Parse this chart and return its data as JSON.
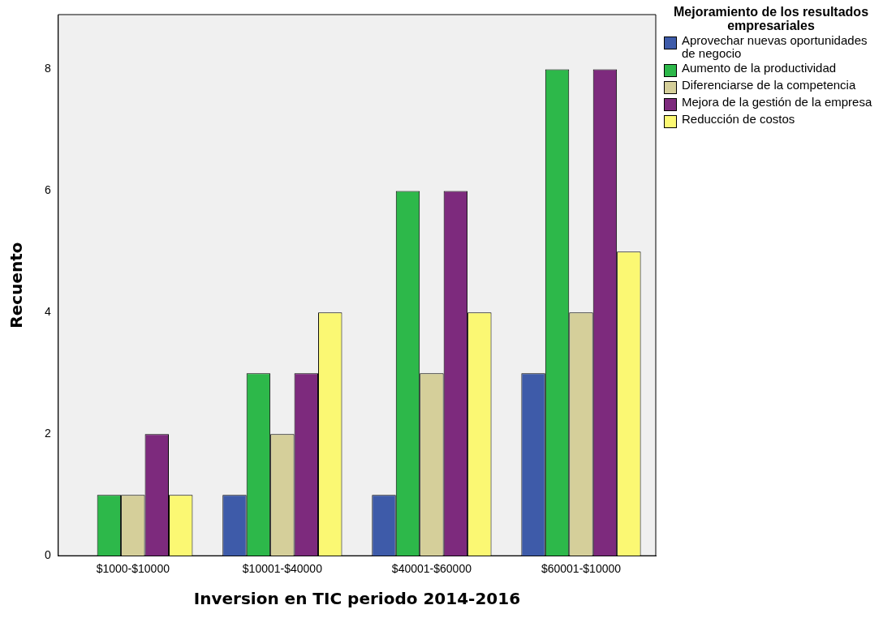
{
  "chart_data": {
    "type": "bar",
    "xlabel": "Inversion en TIC periodo 2014-2016",
    "ylabel": "Recuento",
    "legend_title": "Mejoramiento de los resultados empresariales",
    "categories": [
      "$1000-$10000",
      "$10001-$40000",
      "$40001-$60000",
      "$60001-$10000"
    ],
    "series": [
      {
        "name": "Aprovechar nuevas oportunidades de negocio",
        "color": "#3e5ba9",
        "values": [
          null,
          1,
          1,
          3
        ]
      },
      {
        "name": "Aumento de la productividad",
        "color": "#2db84a",
        "values": [
          1,
          3,
          6,
          8
        ]
      },
      {
        "name": "Diferenciarse de la competencia",
        "color": "#d5cf9a",
        "values": [
          1,
          2,
          3,
          4
        ]
      },
      {
        "name": "Mejora de la gestión de la empresa",
        "color": "#7d2a7d",
        "values": [
          2,
          3,
          6,
          8
        ]
      },
      {
        "name": "Reducción de costos",
        "color": "#fbf873",
        "values": [
          1,
          4,
          4,
          5
        ]
      }
    ],
    "ylim": [
      0,
      8.9
    ],
    "yticks": [
      0,
      2,
      4,
      6,
      8
    ],
    "grid": false,
    "legend": "right"
  }
}
